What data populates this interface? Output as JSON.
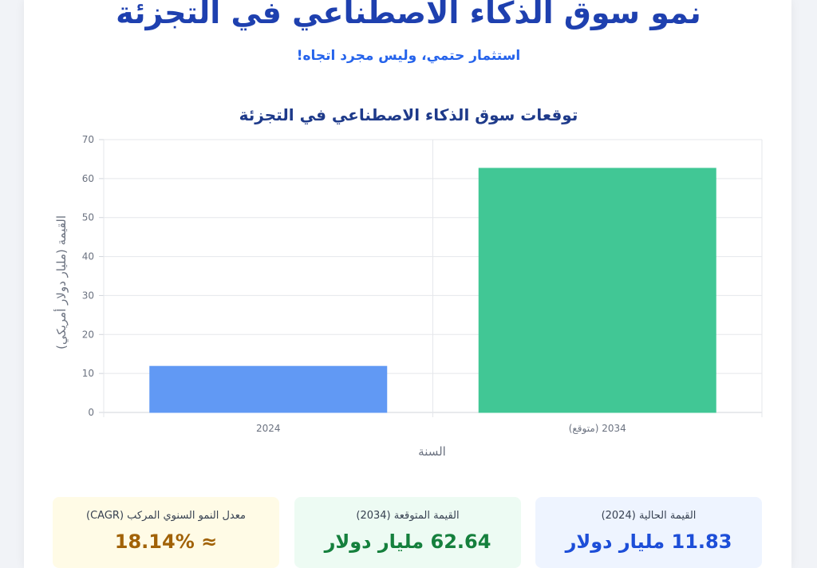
{
  "header": {
    "title": "نمو سوق الذكاء الاصطناعي في التجزئة",
    "subtitle": "استثمار حتمي، وليس مجرد اتجاه!"
  },
  "chart_data": {
    "type": "bar",
    "title": "توقعات سوق الذكاء الاصطناعي في التجزئة",
    "xlabel": "السنة",
    "ylabel": "القيمة (مليار دولار أمريكي)",
    "categories": [
      "2024",
      "2034 (متوقع)"
    ],
    "values": [
      11.83,
      62.64
    ],
    "colors": [
      "#6199f4",
      "#41c795"
    ],
    "ylim": [
      0,
      70
    ],
    "yticks": [
      0,
      10,
      20,
      30,
      40,
      50,
      60,
      70
    ],
    "grid": true,
    "legend": "none"
  },
  "stats": {
    "current": {
      "label": "القيمة الحالية (2024)",
      "value": "11.83 مليار دولار"
    },
    "projected": {
      "label": "القيمة المتوقعة (2034)",
      "value": "62.64 مليار دولار"
    },
    "cagr": {
      "label": "معدل النمو السنوي المركب (CAGR)",
      "value": "≈ 18.14%"
    }
  }
}
